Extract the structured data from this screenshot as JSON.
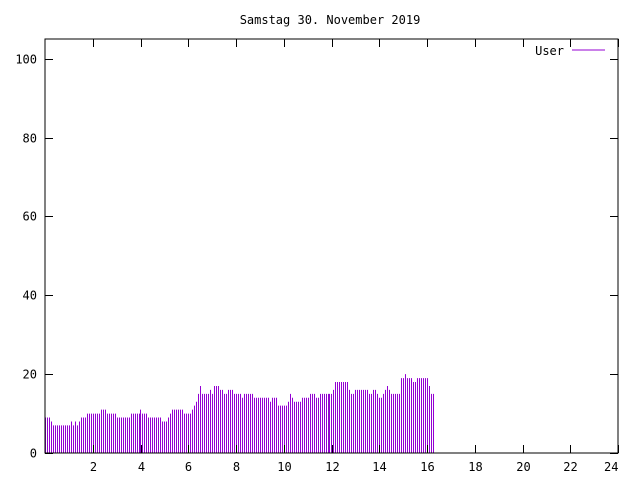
{
  "chart_data": {
    "type": "bar",
    "title": "Samstag 30. November 2019",
    "xlabel": "",
    "ylabel": "",
    "xlim": [
      0,
      24
    ],
    "ylim": [
      0,
      105
    ],
    "x_ticks": [
      2,
      4,
      6,
      8,
      10,
      12,
      14,
      16,
      18,
      20,
      22,
      24
    ],
    "y_ticks": [
      0,
      20,
      40,
      60,
      80,
      100
    ],
    "grid": false,
    "legend_position": "top-right",
    "series": [
      {
        "name": "User",
        "color": "#9400d3",
        "sample_interval_hours": 0.08333,
        "values": [
          9,
          9,
          9,
          8,
          7,
          7,
          7,
          7,
          7,
          7,
          7,
          7,
          7,
          8,
          7,
          8,
          7,
          8,
          9,
          9,
          9,
          10,
          10,
          10,
          10,
          10,
          10,
          10,
          11,
          11,
          11,
          10,
          10,
          10,
          10,
          10,
          9,
          9,
          9,
          9,
          9,
          9,
          9,
          10,
          10,
          10,
          10,
          10,
          11,
          10,
          10,
          10,
          9,
          9,
          9,
          9,
          9,
          9,
          9,
          8,
          8,
          8,
          9,
          10,
          11,
          11,
          11,
          11,
          11,
          11,
          10,
          10,
          10,
          10,
          11,
          12,
          13,
          15,
          17,
          15,
          15,
          15,
          15,
          16,
          15,
          17,
          17,
          17,
          16,
          16,
          15,
          15,
          16,
          16,
          16,
          15,
          15,
          15,
          15,
          14,
          15,
          15,
          15,
          15,
          15,
          14,
          14,
          14,
          14,
          14,
          14,
          14,
          14,
          13,
          14,
          14,
          14,
          12,
          12,
          12,
          12,
          12,
          13,
          15,
          14,
          13,
          13,
          13,
          13,
          14,
          14,
          14,
          14,
          15,
          15,
          15,
          14,
          14,
          15,
          15,
          15,
          15,
          15,
          15,
          15,
          16,
          18,
          18,
          18,
          18,
          18,
          18,
          18,
          16,
          15,
          15,
          16,
          16,
          16,
          16,
          16,
          16,
          16,
          15,
          15,
          16,
          16,
          15,
          14,
          14,
          15,
          16,
          17,
          16,
          15,
          15,
          15,
          15,
          15,
          19,
          19,
          20,
          19,
          19,
          19,
          18,
          18,
          19,
          19,
          19,
          19,
          19,
          19,
          17,
          15,
          15
        ]
      }
    ]
  }
}
